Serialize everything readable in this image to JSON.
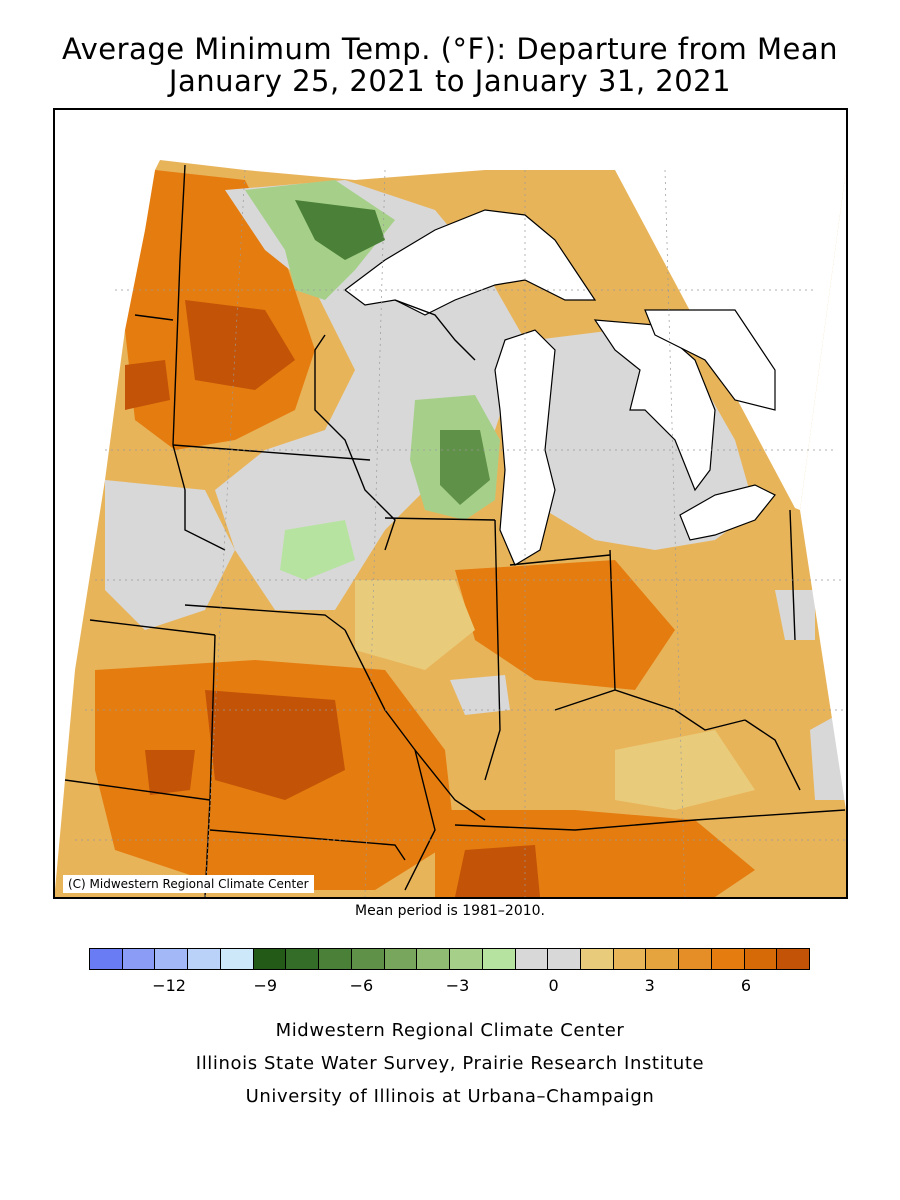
{
  "title_line1": "Average Minimum Temp. (°F): Departure from Mean",
  "title_line2": "January 25, 2021 to January 31, 2021",
  "copyright": "(C) Midwestern Regional Climate Center",
  "mean_period": "Mean period is 1981–2010.",
  "legend": {
    "colors": [
      "#6a7cf4",
      "#8b9cf6",
      "#a3b8f7",
      "#bad2f8",
      "#cde9f9",
      "#235a17",
      "#336d27",
      "#4a8037",
      "#5f9148",
      "#78a65d",
      "#8fbc72",
      "#a6d08a",
      "#b7e3a1",
      "#d8d8d8",
      "#d8d8d8",
      "#e9cc7b",
      "#e8b658",
      "#e6a43f",
      "#e58e27",
      "#e57c0f",
      "#d66a07",
      "#c25307"
    ],
    "ticks": [
      {
        "label": "−12",
        "value": -12
      },
      {
        "label": "−9",
        "value": -9
      },
      {
        "label": "−6",
        "value": -6
      },
      {
        "label": "−3",
        "value": -3
      },
      {
        "label": "0",
        "value": 0
      },
      {
        "label": "3",
        "value": 3
      },
      {
        "label": "6",
        "value": 6
      }
    ],
    "min": -14.5,
    "max": 8
  },
  "credits": [
    "Midwestern Regional Climate Center",
    "Illinois State Water Survey, Prairie Research Institute",
    "University of Illinois at Urbana–Champaign"
  ],
  "colors": {
    "background_fill": "#e8b45a",
    "lakes": "#ffffff",
    "borders": "#000000"
  }
}
